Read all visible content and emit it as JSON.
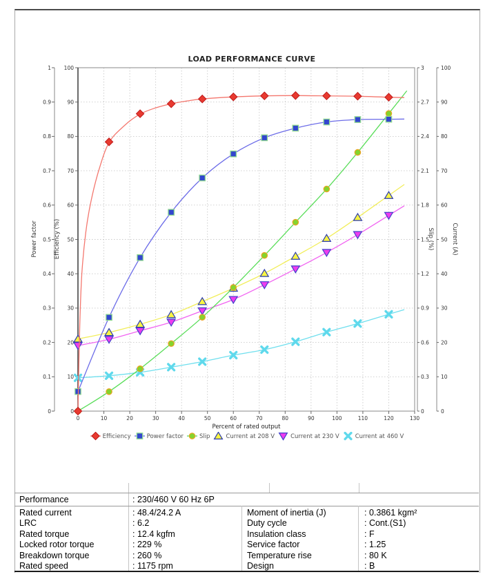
{
  "chart_data": {
    "type": "line",
    "title": "LOAD PERFORMANCE CURVE",
    "xlabel": "Percent of rated output",
    "x_axis": {
      "min": 0,
      "max": 130,
      "tick_step": 10
    },
    "y_axes": [
      {
        "id": "pf",
        "title": "Power factor",
        "side": "left",
        "min": 0,
        "max": 1,
        "tick_step": 0.1
      },
      {
        "id": "eff",
        "title": "Efficiency (%)",
        "side": "left",
        "min": 0,
        "max": 100,
        "tick_step": 10
      },
      {
        "id": "slip",
        "title": "Slip (%)",
        "side": "right",
        "min": 0,
        "max": 3,
        "tick_step": 0.3
      },
      {
        "id": "cur",
        "title": "Current (A)",
        "side": "right",
        "min": 0,
        "max": 100,
        "tick_step": 10
      }
    ],
    "grid": true,
    "legend_position": "bottom",
    "x": [
      0,
      12,
      24,
      36,
      48,
      60,
      72,
      84,
      96,
      108,
      120
    ],
    "series": [
      {
        "name": "Efficiency",
        "axis": "eff",
        "marker": "diamond",
        "marker_color": "#e83a30",
        "marker_edge": "#bf1a1a",
        "line_color": "#f4776e",
        "values": [
          0,
          78.4,
          86.6,
          89.5,
          90.9,
          91.5,
          91.8,
          91.9,
          91.8,
          91.7,
          91.4
        ],
        "curve_x": [
          0,
          0.7,
          1.5,
          3,
          5,
          8,
          12,
          18,
          24,
          30,
          36,
          42,
          48,
          60,
          72,
          84,
          96,
          108,
          120,
          126
        ],
        "curve_y": [
          0,
          25,
          40,
          52,
          61,
          70,
          78.2,
          83.2,
          86.5,
          88.3,
          89.5,
          90.3,
          90.9,
          91.5,
          91.8,
          91.9,
          91.8,
          91.7,
          91.4,
          91.3
        ]
      },
      {
        "name": "Power factor",
        "axis": "pf",
        "marker": "square",
        "marker_color": "#3346cf",
        "marker_edge": "#8fd98f",
        "line_color": "#6b6be8",
        "values": [
          0.057,
          0.273,
          0.447,
          0.579,
          0.679,
          0.749,
          0.796,
          0.824,
          0.842,
          0.849,
          0.85
        ]
      },
      {
        "name": "Slip",
        "axis": "slip",
        "marker": "circle",
        "marker_color": "#84d42e",
        "marker_edge": "#eda322",
        "line_color": "#58dd58",
        "values": [
          0,
          0.17,
          0.37,
          0.59,
          0.82,
          1.08,
          1.36,
          1.65,
          1.94,
          2.26,
          2.6
        ]
      },
      {
        "name": "Current at 208 V",
        "axis": "cur",
        "marker": "triangle-up",
        "marker_color": "#f9f542",
        "marker_edge": "#2c3cae",
        "line_color": "#f2ee5a",
        "values": [
          21.0,
          22.9,
          25.3,
          28.1,
          31.9,
          35.8,
          40.1,
          45.1,
          50.3,
          56.4,
          62.8
        ]
      },
      {
        "name": "Current at 230 V",
        "axis": "cur",
        "marker": "triangle-down",
        "marker_color": "#ee3cee",
        "marker_edge": "#4242cc",
        "line_color": "#f163f1",
        "values": [
          19.1,
          20.9,
          23.4,
          25.9,
          29.2,
          32.5,
          36.8,
          41.4,
          46.2,
          51.4,
          57.0
        ]
      },
      {
        "name": "Current at 460 V",
        "axis": "cur",
        "marker": "x",
        "marker_color": "#5fd9ec",
        "marker_edge": "#5fd9ec",
        "line_color": "#6fdfee",
        "values": [
          9.7,
          10.3,
          11.3,
          12.8,
          14.4,
          16.3,
          17.9,
          20.2,
          23.0,
          25.5,
          28.2
        ]
      }
    ]
  },
  "table": {
    "performance": {
      "label": "Performance",
      "value": ": 230/460 V 60 Hz 6P"
    },
    "left_rows": [
      {
        "label": "Rated current",
        "value": ": 48.4/24.2 A"
      },
      {
        "label": "LRC",
        "value": ": 6.2"
      },
      {
        "label": "Rated torque",
        "value": ": 12.4 kgfm"
      },
      {
        "label": "Locked rotor torque",
        "value": ": 229 %"
      },
      {
        "label": "Breakdown torque",
        "value": ": 260 %"
      },
      {
        "label": "Rated speed",
        "value": ": 1175 rpm"
      }
    ],
    "right_rows": [
      {
        "label": "Moment of inertia (J)",
        "value": ": 0.3861 kgm²"
      },
      {
        "label": "Duty cycle",
        "value": ": Cont.(S1)"
      },
      {
        "label": "Insulation class",
        "value": ": F"
      },
      {
        "label": "Service factor",
        "value": ": 1.25"
      },
      {
        "label": "Temperature rise",
        "value": ": 80 K"
      },
      {
        "label": "Design",
        "value": ": B"
      }
    ]
  }
}
